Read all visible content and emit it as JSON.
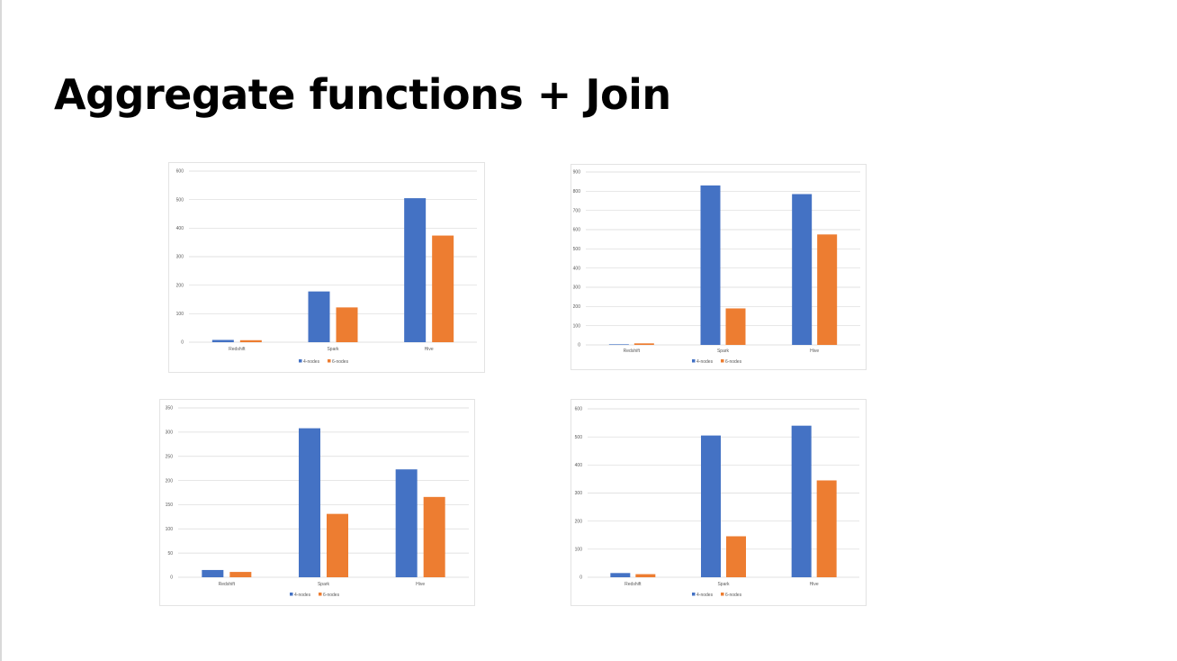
{
  "slide": {
    "title": "Aggregate functions + Join"
  },
  "colors": {
    "series_4_nodes": "#4472c4",
    "series_6_nodes": "#ed7d31",
    "gridline": "#d9d9d9",
    "axis_text": "#595959"
  },
  "chart_data": [
    {
      "type": "bar",
      "categories": [
        "Redshift",
        "Spark",
        "Hive"
      ],
      "series": [
        {
          "name": "4-nodes",
          "values": [
            8,
            178,
            505
          ]
        },
        {
          "name": "6-nodes",
          "values": [
            7,
            122,
            374
          ]
        }
      ],
      "ylim": [
        0,
        600
      ],
      "yticks": [
        0,
        100,
        200,
        300,
        400,
        500,
        600
      ],
      "grid": true,
      "legend": "bottom"
    },
    {
      "type": "bar",
      "categories": [
        "Redshift",
        "Spark",
        "Hive"
      ],
      "series": [
        {
          "name": "4-nodes",
          "values": [
            3,
            830,
            785
          ]
        },
        {
          "name": "6-nodes",
          "values": [
            8,
            190,
            575
          ]
        }
      ],
      "ylim": [
        0,
        900
      ],
      "yticks": [
        0,
        100,
        200,
        300,
        400,
        500,
        600,
        700,
        800,
        900
      ],
      "grid": true,
      "legend": "bottom"
    },
    {
      "type": "bar",
      "categories": [
        "Redshift",
        "Spark",
        "Hive"
      ],
      "series": [
        {
          "name": "4-nodes",
          "values": [
            15,
            308,
            223
          ]
        },
        {
          "name": "6-nodes",
          "values": [
            11,
            131,
            166
          ]
        }
      ],
      "ylim": [
        0,
        350
      ],
      "yticks": [
        0,
        50,
        100,
        150,
        200,
        250,
        300,
        350
      ],
      "grid": true,
      "legend": "bottom"
    },
    {
      "type": "bar",
      "categories": [
        "Redshift",
        "Spark",
        "Hive"
      ],
      "series": [
        {
          "name": "4-nodes",
          "values": [
            15,
            505,
            540
          ]
        },
        {
          "name": "6-nodes",
          "values": [
            11,
            146,
            345
          ]
        }
      ],
      "ylim": [
        0,
        600
      ],
      "yticks": [
        0,
        100,
        200,
        300,
        400,
        500,
        600
      ],
      "grid": true,
      "legend": "bottom"
    }
  ]
}
